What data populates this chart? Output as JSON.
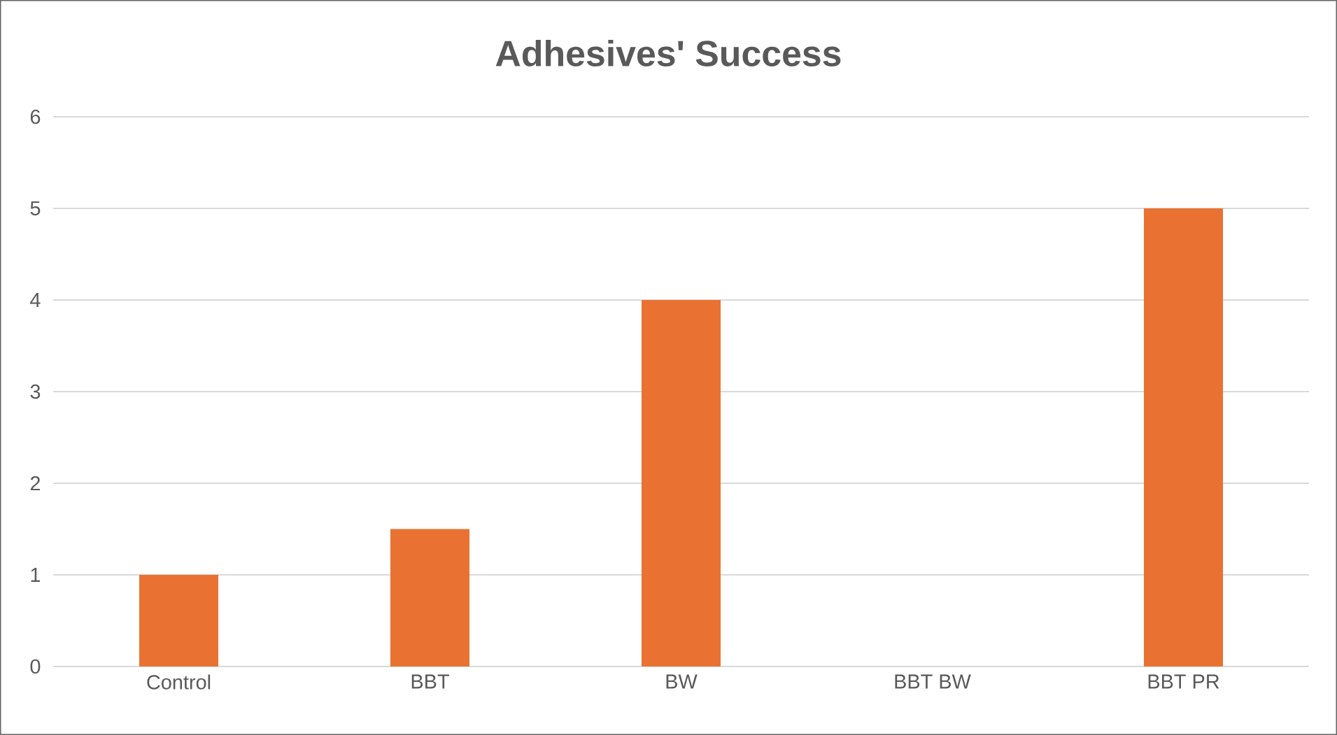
{
  "chart_data": {
    "type": "bar",
    "title": "Adhesives' Success",
    "categories": [
      "Control",
      "BBT",
      "BW",
      "BBT BW",
      "BBT PR"
    ],
    "values": [
      1,
      1.5,
      4,
      0,
      5
    ],
    "color": "#e97132",
    "ylim": [
      0,
      6
    ],
    "yticks": [
      0,
      1,
      2,
      3,
      4,
      5,
      6
    ],
    "grid": "y"
  }
}
